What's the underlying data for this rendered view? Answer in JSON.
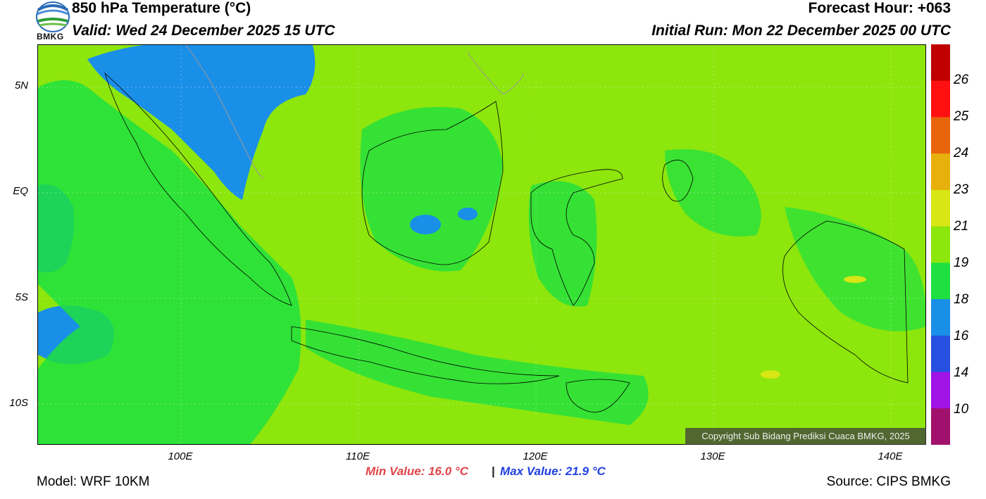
{
  "header": {
    "title": "850 hPa Temperature (°C)",
    "valid": "Valid: Wed 24 December 2025 15 UTC",
    "forecast_hour": "Forecast Hour: +063",
    "initial_run": "Initial Run: Mon 22 December 2025 00 UTC"
  },
  "logo": {
    "text": "BMKG",
    "icon": "bmkg-logo-icon"
  },
  "map": {
    "lat_labels": [
      "5N",
      "EQ",
      "5S",
      "10S"
    ],
    "lon_labels": [
      "100E",
      "110E",
      "120E",
      "130E",
      "140E"
    ],
    "background_color": "#8de60c",
    "copyright": "Copyright Sub Bidang Prediksi Cuaca BMKG, 2025"
  },
  "colorbar": {
    "labels": [
      "26",
      "25",
      "24",
      "23",
      "21",
      "19",
      "18",
      "16",
      "14",
      "10"
    ],
    "colors": [
      "#c00000",
      "#ff1010",
      "#e8640c",
      "#e8b00c",
      "#d7e614",
      "#8de60c",
      "#1fe040",
      "#1a8fe8",
      "#2850e0",
      "#a014e6",
      "#a0106c"
    ]
  },
  "stats": {
    "min": "Min Value: 16.0 °C",
    "separator": "|",
    "max": "Max Value: 21.9 °C",
    "min_color": "#e0454a",
    "max_color": "#2040e0"
  },
  "footer": {
    "model": "Model: WRF 10KM",
    "source": "Source: CIPS BMKG"
  }
}
